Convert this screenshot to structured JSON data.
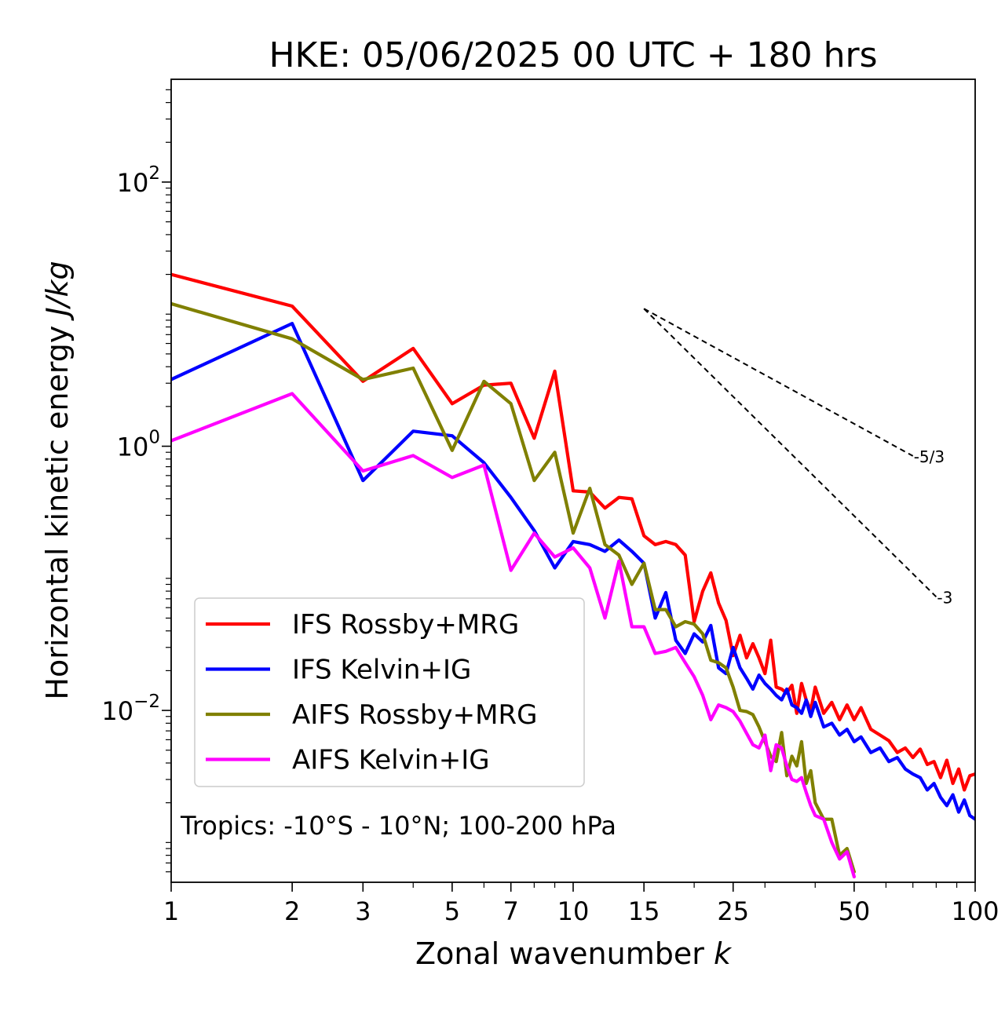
{
  "chart_data": {
    "type": "line",
    "title": "HKE: 05/06/2025 00 UTC + 180 hrs",
    "xlabel": "Zonal wavenumber k",
    "xlabel_main": "Zonal wavenumber ",
    "xlabel_var": "k",
    "ylabel": "Horizontal kinetic energy J/kg",
    "ylabel_main": "Horizontal kinetic energy ",
    "ylabel_unit": "J/kg",
    "xscale": "log",
    "yscale": "log",
    "xlim": [
      1,
      100
    ],
    "ylim": [
      0.0005,
      600
    ],
    "xticks": [
      1,
      2,
      3,
      5,
      7,
      10,
      15,
      25,
      50,
      100
    ],
    "xtick_labels": [
      "1",
      "2",
      "3",
      "5",
      "7",
      "10",
      "15",
      "25",
      "50",
      "100"
    ],
    "yticks": [
      0.01,
      1,
      100
    ],
    "ytick_bases": [
      "10",
      "10",
      "10"
    ],
    "ytick_exps": [
      "−2",
      "0",
      "2"
    ],
    "grid": false,
    "legend_position": "lower-left",
    "annotation": "Tropics: -10°S - 10°N; 100-200 hPa",
    "reference_slopes": [
      {
        "label": "-5/3",
        "slope": -1.6667,
        "x0": 15,
        "y0": 11,
        "x1": 70
      },
      {
        "label": "-3",
        "slope": -3,
        "x0": 15,
        "y0": 11,
        "x1": 80
      }
    ],
    "series": [
      {
        "name": "IFS Rossby+MRG",
        "color": "#ff0000",
        "x": [
          1,
          2,
          3,
          4,
          5,
          6,
          7,
          8,
          9,
          10,
          11,
          12,
          13,
          14,
          15,
          16,
          17,
          18,
          19,
          20,
          21,
          22,
          23,
          24,
          25,
          26,
          27,
          28,
          29,
          30,
          31,
          32,
          33,
          34,
          35,
          36,
          37,
          38,
          39,
          40,
          42,
          44,
          46,
          48,
          50,
          52,
          55,
          58,
          61,
          64,
          67,
          70,
          73,
          76,
          79,
          82,
          85,
          88,
          91,
          94,
          97,
          100
        ],
        "values": [
          20,
          11.5,
          3.1,
          5.5,
          2.1,
          2.9,
          3.0,
          1.15,
          3.7,
          0.46,
          0.45,
          0.34,
          0.41,
          0.4,
          0.21,
          0.18,
          0.19,
          0.18,
          0.15,
          0.047,
          0.08,
          0.11,
          0.065,
          0.048,
          0.026,
          0.037,
          0.025,
          0.032,
          0.025,
          0.019,
          0.034,
          0.015,
          0.0145,
          0.0135,
          0.0155,
          0.0095,
          0.016,
          0.012,
          0.01,
          0.015,
          0.0095,
          0.0115,
          0.0085,
          0.011,
          0.0085,
          0.0105,
          0.0072,
          0.0065,
          0.0059,
          0.0048,
          0.0052,
          0.0044,
          0.0051,
          0.0039,
          0.0041,
          0.0031,
          0.0042,
          0.0028,
          0.0036,
          0.0025,
          0.0032,
          0.0033
        ]
      },
      {
        "name": "IFS Kelvin+IG",
        "color": "#0000ff",
        "x": [
          1,
          2,
          3,
          4,
          5,
          6,
          7,
          8,
          9,
          10,
          11,
          12,
          13,
          14,
          15,
          16,
          17,
          18,
          19,
          20,
          21,
          22,
          23,
          24,
          25,
          26,
          27,
          28,
          29,
          30,
          31,
          32,
          33,
          34,
          35,
          36,
          37,
          38,
          39,
          40,
          42,
          44,
          46,
          48,
          50,
          52,
          55,
          58,
          61,
          64,
          67,
          70,
          73,
          76,
          79,
          82,
          85,
          88,
          91,
          94,
          97,
          100
        ],
        "values": [
          3.2,
          8.5,
          0.55,
          1.3,
          1.2,
          0.75,
          0.41,
          0.23,
          0.12,
          0.19,
          0.18,
          0.16,
          0.195,
          0.16,
          0.13,
          0.05,
          0.078,
          0.034,
          0.027,
          0.038,
          0.033,
          0.044,
          0.021,
          0.019,
          0.03,
          0.021,
          0.0175,
          0.0145,
          0.0185,
          0.016,
          0.0145,
          0.013,
          0.012,
          0.0145,
          0.011,
          0.0105,
          0.0095,
          0.012,
          0.009,
          0.0115,
          0.0075,
          0.008,
          0.0065,
          0.0072,
          0.0058,
          0.0063,
          0.0048,
          0.0052,
          0.0041,
          0.0044,
          0.0036,
          0.0033,
          0.0031,
          0.0025,
          0.0028,
          0.0022,
          0.0019,
          0.0023,
          0.0017,
          0.0021,
          0.0016,
          0.0015
        ]
      },
      {
        "name": "AIFS Rossby+MRG",
        "color": "#808000",
        "x": [
          1,
          2,
          3,
          4,
          5,
          6,
          7,
          8,
          9,
          10,
          11,
          12,
          13,
          14,
          15,
          16,
          17,
          18,
          19,
          20,
          21,
          22,
          23,
          24,
          25,
          26,
          27,
          28,
          29,
          30,
          31,
          32,
          33,
          34,
          35,
          36,
          37,
          38,
          39,
          40,
          42,
          44,
          46,
          48,
          50
        ],
        "values": [
          12,
          6.5,
          3.2,
          3.9,
          0.93,
          3.1,
          2.1,
          0.55,
          0.9,
          0.22,
          0.48,
          0.18,
          0.15,
          0.09,
          0.13,
          0.058,
          0.058,
          0.043,
          0.047,
          0.045,
          0.038,
          0.024,
          0.023,
          0.021,
          0.015,
          0.01,
          0.0098,
          0.0093,
          0.0075,
          0.0058,
          0.0045,
          0.0041,
          0.0068,
          0.0032,
          0.0045,
          0.0038,
          0.0058,
          0.0028,
          0.0035,
          0.002,
          0.0015,
          0.0015,
          0.0008,
          0.0009,
          0.0006
        ]
      },
      {
        "name": "AIFS Kelvin+IG",
        "color": "#ff00ff",
        "x": [
          1,
          2,
          3,
          4,
          5,
          6,
          7,
          8,
          9,
          10,
          11,
          12,
          13,
          14,
          15,
          16,
          17,
          18,
          19,
          20,
          21,
          22,
          23,
          24,
          25,
          26,
          27,
          28,
          29,
          30,
          31,
          32,
          33,
          34,
          35,
          36,
          37,
          38,
          39,
          40,
          42,
          44,
          46,
          48,
          50
        ],
        "values": [
          1.1,
          2.5,
          0.65,
          0.85,
          0.58,
          0.72,
          0.115,
          0.22,
          0.145,
          0.17,
          0.12,
          0.05,
          0.135,
          0.043,
          0.043,
          0.027,
          0.028,
          0.03,
          0.023,
          0.018,
          0.013,
          0.0085,
          0.011,
          0.0105,
          0.0098,
          0.0083,
          0.0067,
          0.0055,
          0.0052,
          0.0065,
          0.0035,
          0.0055,
          0.0052,
          0.0038,
          0.003,
          0.0029,
          0.0031,
          0.0024,
          0.0019,
          0.0016,
          0.0015,
          0.001,
          0.00075,
          0.00085,
          0.00055
        ]
      }
    ]
  }
}
